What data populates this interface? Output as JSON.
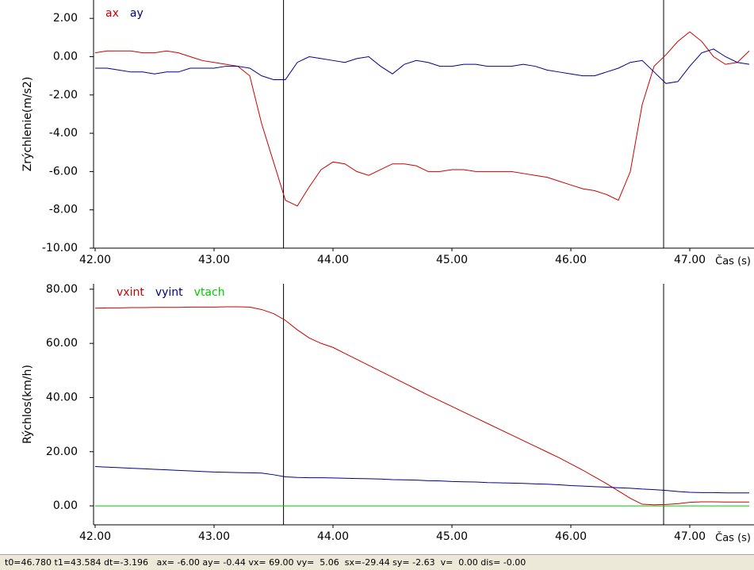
{
  "chart_data": [
    {
      "type": "line",
      "ylabel": "Zrýchlenie(m/s2)",
      "xlabel": "Čas (s)",
      "xlim": [
        42,
        47.54
      ],
      "ylim": [
        -10,
        2.96
      ],
      "xticks": [
        {
          "value": 42,
          "label": "42.00"
        },
        {
          "value": 43,
          "label": "43.00"
        },
        {
          "value": 44,
          "label": "44.00"
        },
        {
          "value": 45,
          "label": "45.00"
        },
        {
          "value": 46,
          "label": "46.00"
        },
        {
          "value": 47,
          "label": "47.00"
        }
      ],
      "yticks": [
        {
          "value": 2,
          "label": "2.00"
        },
        {
          "value": 0,
          "label": "0.00"
        },
        {
          "value": -2,
          "label": "-2.00"
        },
        {
          "value": -4,
          "label": "-4.00"
        },
        {
          "value": -6,
          "label": "-6.00"
        },
        {
          "value": -8,
          "label": "-8.00"
        },
        {
          "value": -10,
          "label": "-10.00"
        }
      ],
      "cursors": [
        43.584,
        46.78
      ],
      "x": [
        42.0,
        42.1,
        42.2,
        42.3,
        42.4,
        42.5,
        42.6,
        42.7,
        42.8,
        42.9,
        43.0,
        43.1,
        43.2,
        43.3,
        43.4,
        43.5,
        43.6,
        43.7,
        43.8,
        43.9,
        44.0,
        44.1,
        44.2,
        44.3,
        44.4,
        44.5,
        44.6,
        44.7,
        44.8,
        44.9,
        45.0,
        45.1,
        45.2,
        45.3,
        45.4,
        45.5,
        45.6,
        45.7,
        45.8,
        45.9,
        46.0,
        46.1,
        46.2,
        46.3,
        46.4,
        46.5,
        46.6,
        46.7,
        46.8,
        46.9,
        47.0,
        47.1,
        47.2,
        47.3,
        47.4,
        47.5
      ],
      "series": [
        {
          "name": "ax",
          "color": "#cc0000",
          "values": [
            0.2,
            0.3,
            0.3,
            0.3,
            0.2,
            0.2,
            0.3,
            0.2,
            0.0,
            -0.2,
            -0.3,
            -0.4,
            -0.5,
            -1.0,
            -3.5,
            -5.5,
            -7.5,
            -7.8,
            -6.8,
            -5.9,
            -5.5,
            -5.6,
            -6.0,
            -6.2,
            -5.9,
            -5.6,
            -5.6,
            -5.7,
            -6.0,
            -6.0,
            -5.9,
            -5.9,
            -6.0,
            -6.0,
            -6.0,
            -6.0,
            -6.1,
            -6.2,
            -6.3,
            -6.5,
            -6.7,
            -6.9,
            -7.0,
            -7.2,
            -7.5,
            -6.0,
            -2.5,
            -0.5,
            0.1,
            0.8,
            1.3,
            0.8,
            0.0,
            -0.4,
            -0.3,
            0.3
          ]
        },
        {
          "name": "ay",
          "color": "#00008b",
          "values": [
            -0.6,
            -0.6,
            -0.7,
            -0.8,
            -0.8,
            -0.9,
            -0.8,
            -0.8,
            -0.6,
            -0.6,
            -0.6,
            -0.5,
            -0.5,
            -0.6,
            -1.0,
            -1.2,
            -1.2,
            -0.3,
            0.0,
            -0.1,
            -0.2,
            -0.3,
            -0.1,
            0.0,
            -0.5,
            -0.9,
            -0.4,
            -0.2,
            -0.3,
            -0.5,
            -0.5,
            -0.4,
            -0.4,
            -0.5,
            -0.5,
            -0.5,
            -0.4,
            -0.5,
            -0.7,
            -0.8,
            -0.9,
            -1.0,
            -1.0,
            -0.8,
            -0.6,
            -0.3,
            -0.2,
            -0.8,
            -1.4,
            -1.3,
            -0.5,
            0.2,
            0.4,
            0.0,
            -0.3,
            -0.4
          ]
        }
      ]
    },
    {
      "type": "line",
      "ylabel": "Rýchlos(km/h)",
      "xlabel": "Čas (s)",
      "xlim": [
        42,
        47.54
      ],
      "ylim": [
        -7,
        82
      ],
      "xticks": [
        {
          "value": 42,
          "label": "42.00"
        },
        {
          "value": 43,
          "label": "43.00"
        },
        {
          "value": 44,
          "label": "44.00"
        },
        {
          "value": 45,
          "label": "45.00"
        },
        {
          "value": 46,
          "label": "46.00"
        },
        {
          "value": 47,
          "label": "47.00"
        }
      ],
      "yticks": [
        {
          "value": 80,
          "label": "80.00"
        },
        {
          "value": 60,
          "label": "60.00"
        },
        {
          "value": 40,
          "label": "40.00"
        },
        {
          "value": 20,
          "label": "20.00"
        },
        {
          "value": 0,
          "label": "0.00"
        }
      ],
      "cursors": [
        43.584,
        46.78
      ],
      "x": [
        42.0,
        42.1,
        42.2,
        42.3,
        42.4,
        42.5,
        42.6,
        42.7,
        42.8,
        42.9,
        43.0,
        43.1,
        43.2,
        43.3,
        43.4,
        43.5,
        43.6,
        43.7,
        43.8,
        43.9,
        44.0,
        44.1,
        44.2,
        44.3,
        44.4,
        44.5,
        44.6,
        44.7,
        44.8,
        44.9,
        45.0,
        45.1,
        45.2,
        45.3,
        45.4,
        45.5,
        45.6,
        45.7,
        45.8,
        45.9,
        46.0,
        46.1,
        46.2,
        46.3,
        46.4,
        46.5,
        46.6,
        46.7,
        46.8,
        46.9,
        47.0,
        47.1,
        47.2,
        47.3,
        47.4,
        47.5
      ],
      "series": [
        {
          "name": "vxint",
          "color": "#cc0000",
          "values": [
            73.0,
            73.1,
            73.1,
            73.2,
            73.2,
            73.3,
            73.3,
            73.3,
            73.4,
            73.4,
            73.4,
            73.5,
            73.5,
            73.4,
            72.5,
            71.0,
            68.5,
            65.0,
            62.0,
            60.0,
            58.5,
            56.3,
            54.1,
            51.9,
            49.7,
            47.5,
            45.3,
            43.1,
            40.9,
            38.8,
            36.7,
            34.6,
            32.5,
            30.4,
            28.3,
            26.2,
            24.1,
            22.0,
            19.9,
            17.8,
            15.5,
            13.2,
            10.7,
            8.2,
            5.5,
            2.8,
            0.6,
            0.4,
            0.5,
            0.8,
            1.3,
            1.5,
            1.5,
            1.4,
            1.4,
            1.4
          ]
        },
        {
          "name": "vyint",
          "color": "#00008b",
          "values": [
            14.5,
            14.3,
            14.1,
            13.9,
            13.7,
            13.5,
            13.3,
            13.1,
            12.9,
            12.7,
            12.5,
            12.4,
            12.3,
            12.2,
            12.1,
            11.5,
            10.7,
            10.5,
            10.4,
            10.4,
            10.3,
            10.2,
            10.1,
            10.0,
            9.9,
            9.7,
            9.6,
            9.5,
            9.3,
            9.2,
            9.0,
            8.9,
            8.8,
            8.6,
            8.5,
            8.4,
            8.3,
            8.1,
            8.0,
            7.8,
            7.5,
            7.3,
            7.1,
            6.9,
            6.7,
            6.5,
            6.2,
            6.0,
            5.7,
            5.3,
            5.0,
            4.9,
            4.9,
            4.8,
            4.8,
            4.8
          ]
        },
        {
          "name": "vtach",
          "color": "#00cc00",
          "values": [
            0,
            0,
            0,
            0,
            0,
            0,
            0,
            0,
            0,
            0,
            0,
            0,
            0,
            0,
            0,
            0,
            0,
            0,
            0,
            0,
            0,
            0,
            0,
            0,
            0,
            0,
            0,
            0,
            0,
            0,
            0,
            0,
            0,
            0,
            0,
            0,
            0,
            0,
            0,
            0,
            0,
            0,
            0,
            0,
            0,
            0,
            0,
            0,
            0,
            0,
            0,
            0,
            0,
            0,
            0,
            0
          ]
        }
      ]
    }
  ],
  "status_bar": "t0=46.780 t1=43.584 dt=-3.196   ax= -6.00 ay= -0.44 vx= 69.00 vy=  5.06  sx=-29.44 sy= -2.63  v=  0.00 dis= -0.00"
}
